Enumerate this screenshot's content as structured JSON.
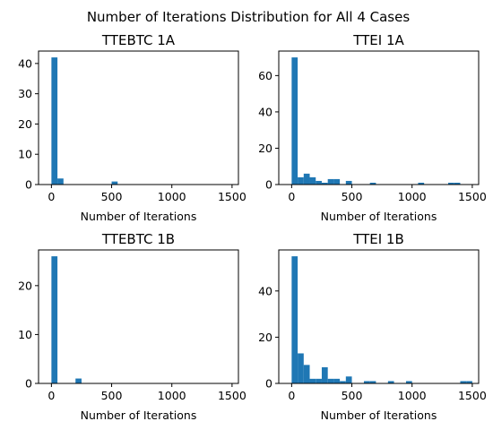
{
  "figure": {
    "suptitle": "Number of Iterations Distribution for All 4 Cases"
  },
  "chart_data": [
    {
      "type": "bar",
      "title": "TTEBTC 1A",
      "xlabel": "Number of Iterations",
      "ylabel": "",
      "xlim": [
        -107,
        1553
      ],
      "ylim": [
        0,
        44.1
      ],
      "xticks": [
        0,
        500,
        1000,
        1500
      ],
      "yticks": [
        0,
        10,
        20,
        30,
        40
      ],
      "bin_width": 50,
      "bars": [
        {
          "x0": 0,
          "x1": 50,
          "count": 42
        },
        {
          "x0": 50,
          "x1": 100,
          "count": 2
        },
        {
          "x0": 500,
          "x1": 550,
          "count": 1
        }
      ],
      "color": "#1f77b4"
    },
    {
      "type": "bar",
      "title": "TTEI 1A",
      "xlabel": "Number of Iterations",
      "ylabel": "",
      "xlim": [
        -107,
        1553
      ],
      "ylim": [
        0,
        73.5
      ],
      "xticks": [
        0,
        500,
        1000,
        1500
      ],
      "yticks": [
        0,
        20,
        40,
        60
      ],
      "bin_width": 50,
      "bars": [
        {
          "x0": 0,
          "x1": 50,
          "count": 70
        },
        {
          "x0": 50,
          "x1": 100,
          "count": 4
        },
        {
          "x0": 100,
          "x1": 150,
          "count": 6
        },
        {
          "x0": 150,
          "x1": 200,
          "count": 4
        },
        {
          "x0": 200,
          "x1": 250,
          "count": 2
        },
        {
          "x0": 250,
          "x1": 300,
          "count": 1
        },
        {
          "x0": 300,
          "x1": 350,
          "count": 3
        },
        {
          "x0": 350,
          "x1": 400,
          "count": 3
        },
        {
          "x0": 450,
          "x1": 500,
          "count": 2
        },
        {
          "x0": 650,
          "x1": 700,
          "count": 1
        },
        {
          "x0": 1050,
          "x1": 1100,
          "count": 1
        },
        {
          "x0": 1300,
          "x1": 1350,
          "count": 1
        },
        {
          "x0": 1350,
          "x1": 1400,
          "count": 1
        }
      ],
      "color": "#1f77b4"
    },
    {
      "type": "bar",
      "title": "TTEBTC 1B",
      "xlabel": "Number of Iterations",
      "ylabel": "",
      "xlim": [
        -107,
        1553
      ],
      "ylim": [
        0,
        27.3
      ],
      "xticks": [
        0,
        500,
        1000,
        1500
      ],
      "yticks": [
        0,
        10,
        20
      ],
      "bin_width": 50,
      "bars": [
        {
          "x0": 0,
          "x1": 50,
          "count": 26
        },
        {
          "x0": 200,
          "x1": 250,
          "count": 1
        }
      ],
      "color": "#1f77b4"
    },
    {
      "type": "bar",
      "title": "TTEI 1B",
      "xlabel": "Number of Iterations",
      "ylabel": "",
      "xlim": [
        -107,
        1553
      ],
      "ylim": [
        0,
        57.75
      ],
      "xticks": [
        0,
        500,
        1000,
        1500
      ],
      "yticks": [
        0,
        20,
        40
      ],
      "bin_width": 50,
      "bars": [
        {
          "x0": 0,
          "x1": 50,
          "count": 55
        },
        {
          "x0": 50,
          "x1": 100,
          "count": 13
        },
        {
          "x0": 100,
          "x1": 150,
          "count": 8
        },
        {
          "x0": 150,
          "x1": 200,
          "count": 2
        },
        {
          "x0": 200,
          "x1": 250,
          "count": 2
        },
        {
          "x0": 250,
          "x1": 300,
          "count": 7
        },
        {
          "x0": 300,
          "x1": 350,
          "count": 2
        },
        {
          "x0": 350,
          "x1": 400,
          "count": 2
        },
        {
          "x0": 400,
          "x1": 450,
          "count": 1
        },
        {
          "x0": 450,
          "x1": 500,
          "count": 3
        },
        {
          "x0": 600,
          "x1": 650,
          "count": 1
        },
        {
          "x0": 650,
          "x1": 700,
          "count": 1
        },
        {
          "x0": 800,
          "x1": 850,
          "count": 1
        },
        {
          "x0": 950,
          "x1": 1000,
          "count": 1
        },
        {
          "x0": 1400,
          "x1": 1450,
          "count": 1
        },
        {
          "x0": 1450,
          "x1": 1500,
          "count": 1
        }
      ],
      "color": "#1f77b4"
    }
  ]
}
